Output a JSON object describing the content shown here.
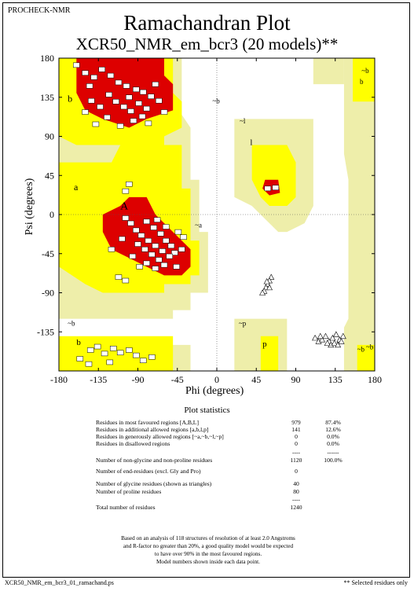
{
  "header": {
    "program": "PROCHECK-NMR",
    "title": "Ramachandran Plot",
    "subtitle": "XCR50_NMR_em_bcr3 (20 models)**"
  },
  "chart_data": {
    "type": "scatter",
    "xlabel": "Phi (degrees)",
    "ylabel": "Psi (degrees)",
    "xlim": [
      -180,
      180
    ],
    "ylim": [
      -180,
      180
    ],
    "xticks": [
      "-180",
      "-135",
      "-90",
      "-45",
      "0",
      "45",
      "90",
      "135",
      "180"
    ],
    "yticks": [
      "180",
      "135",
      "90",
      "45",
      "0",
      "-45",
      "-90",
      "-135"
    ],
    "region_labels": [
      "b",
      "~b",
      "~b",
      "~b",
      "a",
      "A",
      "~a",
      "~l",
      "l",
      "~p",
      "p",
      "b",
      "~b",
      "~b",
      "b"
    ],
    "colors": {
      "core": "#dd0000",
      "allowed": "#ffff00",
      "generous": "#eeeeaa",
      "background": "#ffffff"
    },
    "residues": [
      {
        "phi": -150,
        "psi": 163
      },
      {
        "phi": -140,
        "psi": 158
      },
      {
        "phi": -131,
        "psi": 167
      },
      {
        "phi": -121,
        "psi": 160
      },
      {
        "phi": -112,
        "psi": 152
      },
      {
        "phi": -103,
        "psi": 148
      },
      {
        "phi": -92,
        "psi": 144
      },
      {
        "phi": -84,
        "psi": 141
      },
      {
        "phi": -75,
        "psi": 136
      },
      {
        "phi": -66,
        "psi": 131
      },
      {
        "phi": -123,
        "psi": 138
      },
      {
        "phi": -115,
        "psi": 130
      },
      {
        "phi": -106,
        "psi": 124
      },
      {
        "phi": -98,
        "psi": 119
      },
      {
        "phi": -89,
        "psi": 128
      },
      {
        "phi": -80,
        "psi": 122
      },
      {
        "phi": -133,
        "psi": 124
      },
      {
        "phi": -143,
        "psi": 131
      },
      {
        "phi": -95,
        "psi": 108
      },
      {
        "phi": -85,
        "psi": 113
      },
      {
        "phi": -160,
        "psi": 172
      },
      {
        "phi": -145,
        "psi": 148
      },
      {
        "phi": -70,
        "psi": 150
      },
      {
        "phi": -110,
        "psi": 102
      },
      {
        "phi": -150,
        "psi": 118
      },
      {
        "phi": -125,
        "psi": 112
      },
      {
        "phi": -60,
        "psi": 118
      },
      {
        "phi": -100,
        "psi": 135
      },
      {
        "phi": -78,
        "psi": 105
      },
      {
        "phi": -138,
        "psi": 104
      },
      {
        "phi": -80,
        "psi": -8
      },
      {
        "phi": -72,
        "psi": -15
      },
      {
        "phi": -64,
        "psi": -22
      },
      {
        "phi": -58,
        "psi": -30
      },
      {
        "phi": -52,
        "psi": -36
      },
      {
        "phi": -48,
        "psi": -44
      },
      {
        "phi": -54,
        "psi": -48
      },
      {
        "phi": -62,
        "psi": -42
      },
      {
        "phi": -70,
        "psi": -36
      },
      {
        "phi": -78,
        "psi": -30
      },
      {
        "phi": -86,
        "psi": -24
      },
      {
        "phi": -92,
        "psi": -18
      },
      {
        "phi": -98,
        "psi": -10
      },
      {
        "phi": -90,
        "psi": -34
      },
      {
        "phi": -82,
        "psi": -40
      },
      {
        "phi": -74,
        "psi": -46
      },
      {
        "phi": -66,
        "psi": -52
      },
      {
        "phi": -60,
        "psi": -58
      },
      {
        "phi": -70,
        "psi": -62
      },
      {
        "phi": -80,
        "psi": -56
      },
      {
        "phi": -68,
        "psi": -6
      },
      {
        "phi": -58,
        "psi": -14
      },
      {
        "phi": -44,
        "psi": -20
      },
      {
        "phi": -40,
        "psi": -40
      },
      {
        "phi": -108,
        "psi": -28
      },
      {
        "phi": -104,
        "psi": -4
      },
      {
        "phi": -96,
        "psi": -48
      },
      {
        "phi": -88,
        "psi": -60
      },
      {
        "phi": -120,
        "psi": -40
      },
      {
        "phi": -46,
        "psi": -60
      },
      {
        "phi": -112,
        "psi": -72
      },
      {
        "phi": -104,
        "psi": -76
      },
      {
        "phi": -38,
        "psi": -26
      },
      {
        "phi": -104,
        "psi": 27
      },
      {
        "phi": -100,
        "psi": 35
      },
      {
        "phi": 67,
        "psi": 31
      },
      {
        "phi": 58,
        "psi": 30
      },
      {
        "phi": -144,
        "psi": -156
      },
      {
        "phi": -136,
        "psi": -152
      },
      {
        "phi": -128,
        "psi": -160
      },
      {
        "phi": -118,
        "psi": -154
      },
      {
        "phi": -110,
        "psi": -159
      },
      {
        "phi": -100,
        "psi": -156
      },
      {
        "phi": -92,
        "psi": -162
      },
      {
        "phi": -156,
        "psi": -166
      },
      {
        "phi": -146,
        "psi": -172
      },
      {
        "phi": -122,
        "psi": -170
      },
      {
        "phi": -84,
        "psi": -168
      },
      {
        "phi": -74,
        "psi": -164
      }
    ],
    "glycines": [
      {
        "phi": 62,
        "psi": -72
      },
      {
        "phi": 60,
        "psi": -76
      },
      {
        "phi": 58,
        "psi": -80
      },
      {
        "phi": 56,
        "psi": -84
      },
      {
        "phi": 54,
        "psi": -88
      },
      {
        "phi": 52,
        "psi": -90
      },
      {
        "phi": 60,
        "psi": -84
      },
      {
        "phi": 57,
        "psi": -77
      },
      {
        "phi": 112,
        "psi": -142
      },
      {
        "phi": 116,
        "psi": -146
      },
      {
        "phi": 120,
        "psi": -144
      },
      {
        "phi": 124,
        "psi": -140
      },
      {
        "phi": 128,
        "psi": -146
      },
      {
        "phi": 132,
        "psi": -142
      },
      {
        "phi": 136,
        "psi": -138
      },
      {
        "phi": 140,
        "psi": -144
      },
      {
        "phi": 144,
        "psi": -140
      },
      {
        "phi": 130,
        "psi": -150
      },
      {
        "phi": 126,
        "psi": -148
      },
      {
        "phi": 134,
        "psi": -148
      },
      {
        "phi": 118,
        "psi": -140
      },
      {
        "phi": 138,
        "psi": -150
      },
      {
        "phi": 142,
        "psi": -146
      }
    ]
  },
  "statistics": {
    "heading": "Plot statistics",
    "rows": [
      {
        "label": "Residues in most favoured regions  [A,B,L]",
        "count": "979",
        "pct": "87.4%"
      },
      {
        "label": "Residues in additional allowed regions  [a,b,l,p]",
        "count": "141",
        "pct": "12.6%"
      },
      {
        "label": "Residues in generously allowed regions  [~a,~b,~l,~p]",
        "count": "0",
        "pct": "0.0%"
      },
      {
        "label": "Residues in disallowed regions",
        "count": "0",
        "pct": "0.0%"
      },
      {
        "label": "",
        "count": "----",
        "pct": "------"
      },
      {
        "label": "Number of non-glycine and non-proline residues",
        "count": "1120",
        "pct": "100.0%"
      },
      {
        "label": "Number of end-residues (excl. Gly and Pro)",
        "count": "0",
        "pct": ""
      },
      {
        "label": "Number of glycine residues (shown as triangles)",
        "count": "40",
        "pct": ""
      },
      {
        "label": "Number of proline residues",
        "count": "80",
        "pct": ""
      },
      {
        "label": "",
        "count": "----",
        "pct": ""
      },
      {
        "label": "Total number of residues",
        "count": "1240",
        "pct": ""
      }
    ]
  },
  "footer": {
    "note_lines": [
      "Based on an analysis of 118 structures of resolution of at least 2.0 Angstroms",
      "and R-factor no greater than 20%, a good quality model would be expected",
      "to have over 90% in the most favoured regions.",
      "Model numbers shown inside each data point."
    ],
    "file_name": "XCR50_NMR_em_bcr3_01_ramachand.ps",
    "selected_note": "** Selected residues only"
  }
}
